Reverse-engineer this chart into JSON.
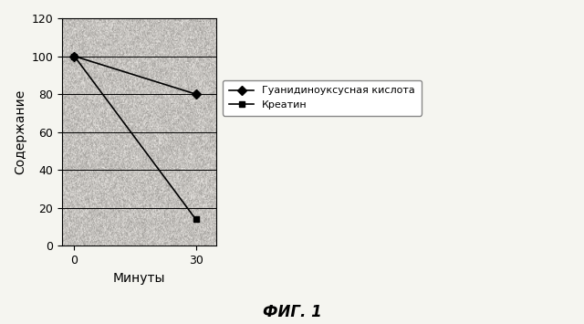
{
  "title": "ФИГ. 1",
  "ylabel": "Содержание",
  "xlabel": "Минуты",
  "ylim": [
    0,
    120
  ],
  "yticks": [
    0,
    20,
    40,
    60,
    80,
    100,
    120
  ],
  "xticks": [
    0,
    30
  ],
  "xlim": [
    -3,
    35
  ],
  "series": [
    {
      "label": "Гуанидиноуксусная кислота",
      "x": [
        0,
        30
      ],
      "y": [
        100,
        80
      ],
      "color": "#000000",
      "marker": "D",
      "markersize": 5,
      "linewidth": 1.2
    },
    {
      "label": "Креатин",
      "x": [
        0,
        30
      ],
      "y": [
        100,
        14
      ],
      "color": "#000000",
      "marker": "s",
      "markersize": 5,
      "linewidth": 1.2
    }
  ],
  "plot_bg_color": "#e8e4de",
  "fig_bg_color": "#f5f5f0",
  "legend_fontsize": 8,
  "axis_label_fontsize": 10,
  "tick_fontsize": 9,
  "title_fontsize": 12,
  "title_fontweight": "bold",
  "noise_seed": 42,
  "noise_intensity": 0.35
}
